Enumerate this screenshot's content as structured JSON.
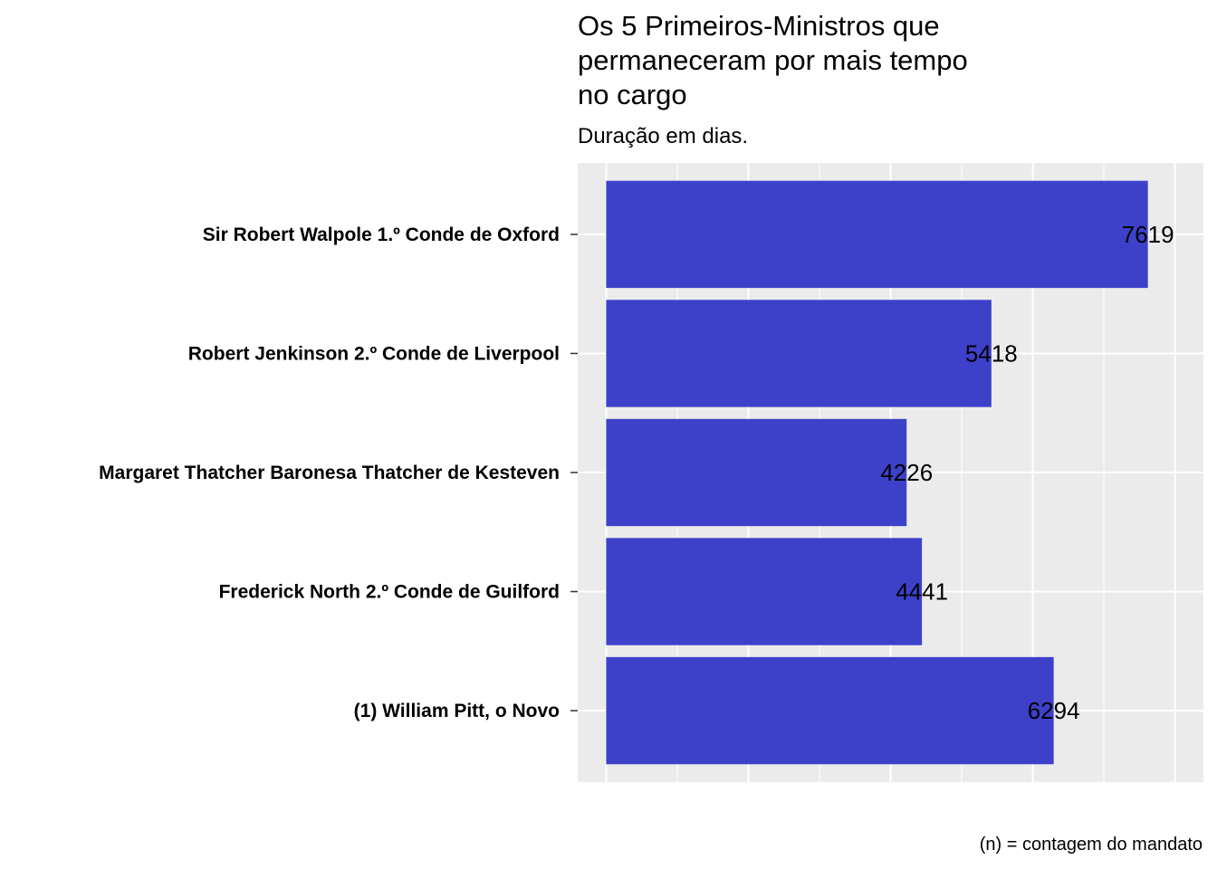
{
  "chart_data": {
    "type": "bar",
    "orientation": "horizontal",
    "title": "Os 5 Primeiros-Ministros que permaneceram por mais tempo no cargo",
    "subtitle": "Duração em dias.",
    "caption": "(n) = contagem do mandato",
    "categories": [
      "Sir Robert Walpole 1.º Conde de Oxford",
      "Robert Jenkinson 2.º Conde de Liverpool",
      "Margaret Thatcher Baronesa Thatcher de Kesteven",
      "Frederick North 2.º Conde de Guilford",
      "(1) William Pitt, o Novo"
    ],
    "values": [
      7619,
      5418,
      4226,
      4441,
      6294
    ],
    "data_labels": [
      "7619",
      "5418",
      "4226",
      "4441",
      "6294"
    ],
    "xlabel": "",
    "ylabel": "",
    "xlim": [
      -400,
      8400
    ],
    "x_tick_labels_shown": false,
    "grid": true,
    "legend": "none",
    "colors": {
      "bar": "#3d41c9",
      "panel": "#ebebeb",
      "grid": "#ffffff"
    }
  }
}
